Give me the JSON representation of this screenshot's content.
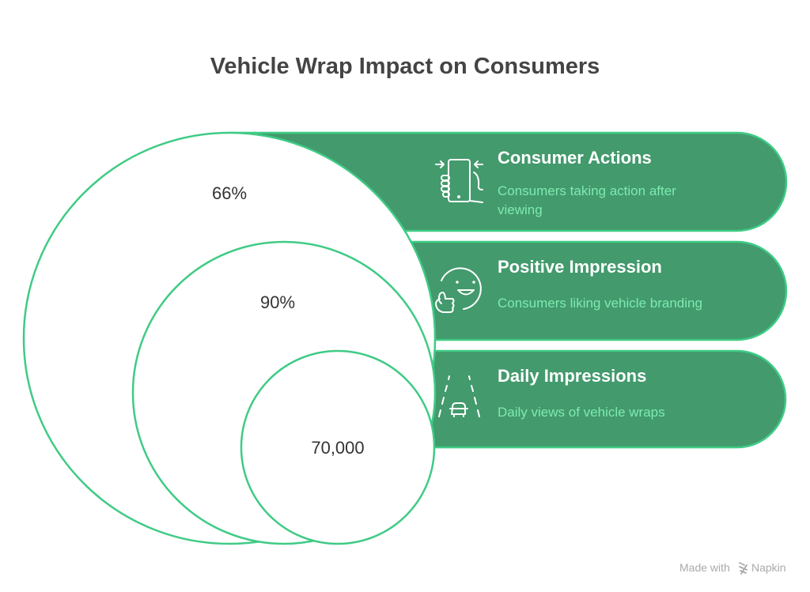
{
  "title": "Vehicle Wrap Impact on Consumers",
  "items": [
    {
      "heading": "Consumer Actions",
      "desc_lines": [
        "Consumers taking action after",
        "viewing"
      ],
      "value": "66%",
      "icon": "phone-hand-icon"
    },
    {
      "heading": "Positive Impression",
      "desc_lines": [
        "Consumers liking vehicle branding"
      ],
      "value": "90%",
      "icon": "smiley-thumbs-up-icon"
    },
    {
      "heading": "Daily Impressions",
      "desc_lines": [
        "Daily views of vehicle wraps"
      ],
      "value": "70,000",
      "icon": "car-road-icon"
    }
  ],
  "footer": {
    "made_with": "Made with",
    "brand": "Napkin"
  },
  "colors": {
    "banner": "#439A6D",
    "stroke": "#3FCB85",
    "desc": "#7DEBB0"
  }
}
